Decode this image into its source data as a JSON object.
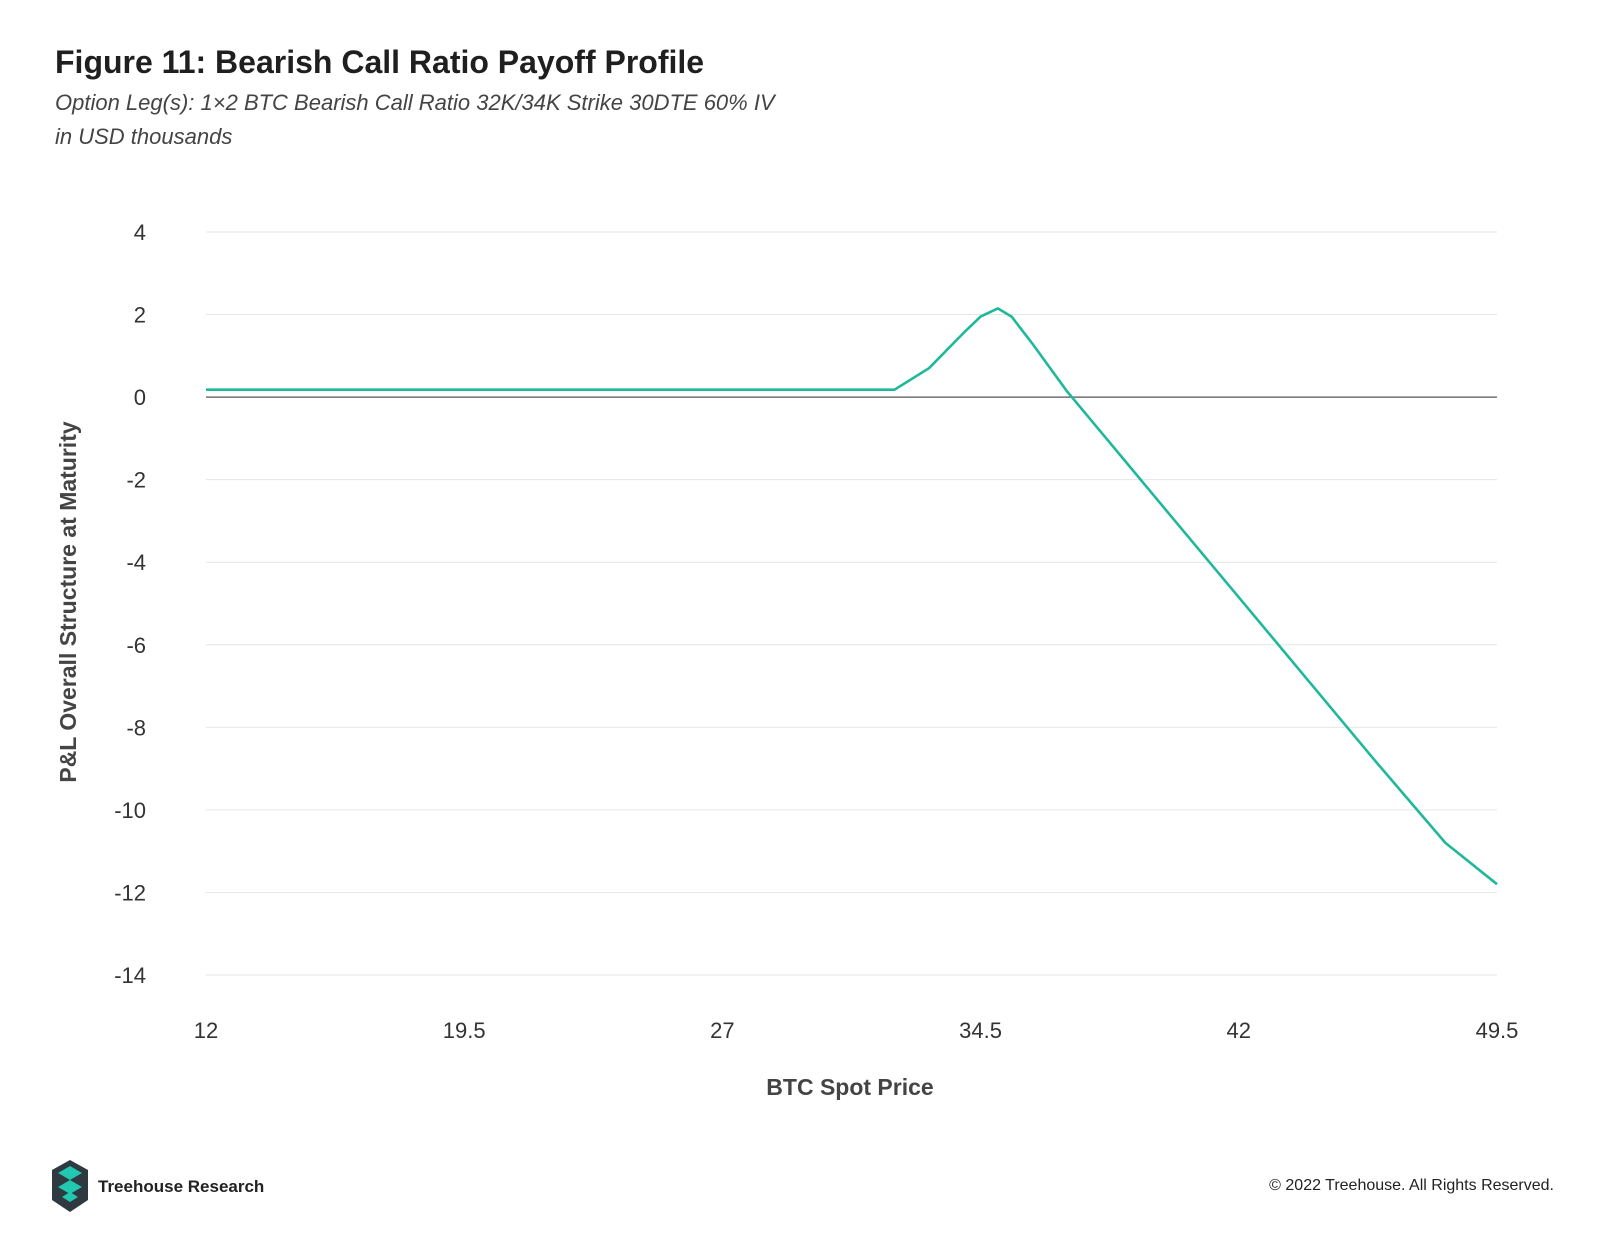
{
  "header": {
    "title": "Figure 11: Bearish Call Ratio Payoff Profile",
    "subtitle": "Option Leg(s): 1×2 BTC Bearish Call Ratio 32K/34K Strike 30DTE 60% IV",
    "subtitle2": "in USD thousands"
  },
  "footer": {
    "brand": "Treehouse Research",
    "copyright": "© 2022 Treehouse. All Rights Reserved."
  },
  "colors": {
    "line": "#1fb89a",
    "grid": "#e6e6e6",
    "zero_line": "#555555",
    "logo_dark": "#2e3a3f",
    "logo_accent": "#22c7b0"
  },
  "chart_data": {
    "type": "line",
    "xlabel": "BTC Spot Price",
    "ylabel": "P&L Overall Structure at Maturity",
    "xlim": [
      12,
      49.5
    ],
    "ylim": [
      -14,
      4
    ],
    "xticks": [
      "12",
      "19.5",
      "27",
      "34.5",
      "42",
      "49.5"
    ],
    "yticks": [
      "4",
      "2",
      "0",
      "-2",
      "-4",
      "-6",
      "-8",
      "-10",
      "-12",
      "-14"
    ],
    "grid": true,
    "legend": "none",
    "series": [
      {
        "x": [
          12,
          32,
          33,
          34,
          34.5,
          35,
          35.4,
          36,
          37,
          38,
          40,
          42,
          44,
          46,
          48,
          49.5
        ],
        "y": [
          0.18,
          0.18,
          0.7,
          1.55,
          1.95,
          2.15,
          1.95,
          1.3,
          0.15,
          -0.85,
          -2.85,
          -4.85,
          -6.85,
          -8.85,
          -10.8,
          -11.8
        ]
      }
    ]
  }
}
